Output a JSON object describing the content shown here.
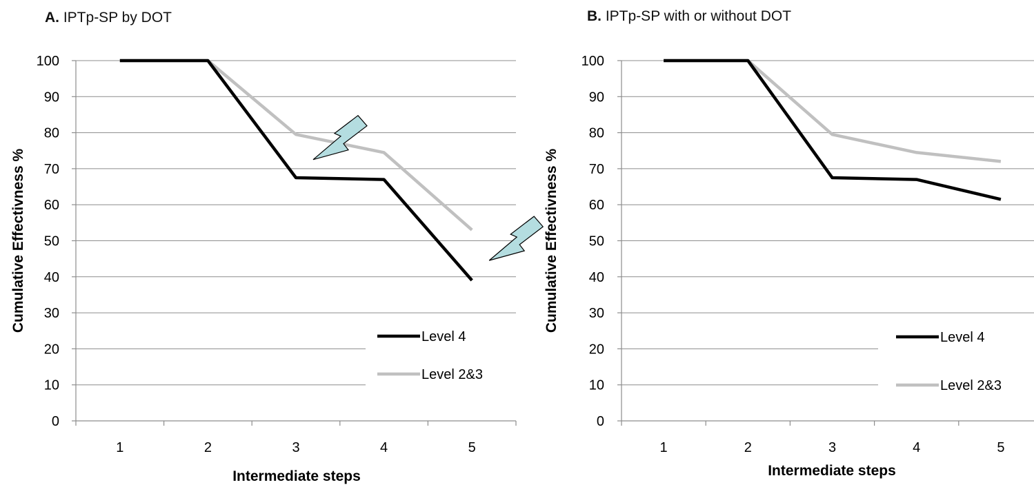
{
  "chart_data": [
    {
      "type": "line",
      "panel_letter": "A.",
      "title": "IPTp-SP by DOT",
      "xlabel": "Intermediate steps",
      "ylabel": "Cumulative Effectivness %",
      "categories": [
        "1",
        "2",
        "3",
        "4",
        "5"
      ],
      "ylim": [
        0,
        100
      ],
      "yticks": [
        0,
        10,
        20,
        30,
        40,
        50,
        60,
        70,
        80,
        90,
        100
      ],
      "grid": true,
      "legend_position": "bottom-right",
      "series": [
        {
          "name": "Level 4",
          "color": "#000000",
          "values": [
            100,
            100,
            67.5,
            67,
            39
          ]
        },
        {
          "name": "Level 2&3",
          "color": "#c0c0c0",
          "values": [
            100,
            100,
            79.5,
            74.5,
            53
          ]
        }
      ],
      "annotations": [
        {
          "shape": "arrow",
          "color": "#b4dde0",
          "points_to": {
            "x": "3",
            "y": 71
          }
        },
        {
          "shape": "arrow",
          "color": "#b4dde0",
          "points_to": {
            "x": "5",
            "y": 43
          }
        }
      ]
    },
    {
      "type": "line",
      "panel_letter": "B.",
      "title": "IPTp-SP with or without DOT",
      "xlabel": "Intermediate steps",
      "ylabel": "Cumulative Effectivness %",
      "categories": [
        "1",
        "2",
        "3",
        "4",
        "5"
      ],
      "ylim": [
        0,
        100
      ],
      "yticks": [
        0,
        10,
        20,
        30,
        40,
        50,
        60,
        70,
        80,
        90,
        100
      ],
      "grid": true,
      "legend_position": "bottom-right",
      "series": [
        {
          "name": "Level 4",
          "color": "#000000",
          "values": [
            100,
            100,
            67.5,
            67,
            61.5
          ]
        },
        {
          "name": "Level 2&3",
          "color": "#c0c0c0",
          "values": [
            100,
            100,
            79.5,
            74.5,
            72
          ]
        }
      ],
      "annotations": []
    }
  ]
}
